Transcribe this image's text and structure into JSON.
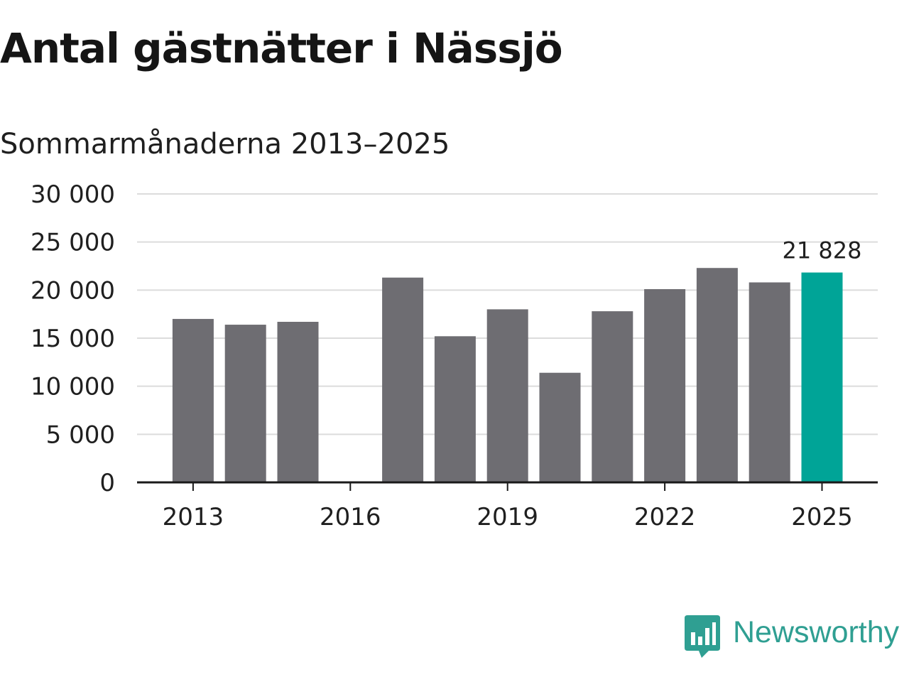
{
  "title": "Antal gästnätter i Nässjö",
  "subtitle": "Sommarmånaderna 2013–2025",
  "colors": {
    "bar": "#6e6d72",
    "highlight": "#00a497",
    "grid": "#dcdcdc",
    "axis": "#1a1a1a",
    "text": "#1f1f1f",
    "brand": "#2f9f92"
  },
  "chart_data": {
    "type": "bar",
    "x": [
      2013,
      2014,
      2015,
      2016,
      2017,
      2018,
      2019,
      2020,
      2021,
      2022,
      2023,
      2024,
      2025
    ],
    "values": [
      17000,
      16400,
      16700,
      null,
      21300,
      15200,
      18000,
      11400,
      17800,
      20100,
      22300,
      20800,
      21828
    ],
    "highlight_index": 12,
    "highlight_label": "21 828",
    "ylim": [
      0,
      30000
    ],
    "yticks": [
      0,
      5000,
      10000,
      15000,
      20000,
      25000,
      30000
    ],
    "ytick_labels": [
      "0",
      "5 000",
      "10 000",
      "15 000",
      "20 000",
      "25 000",
      "30 000"
    ],
    "xticks": [
      2013,
      2016,
      2019,
      2022,
      2025
    ],
    "xtick_labels": [
      "2013",
      "2016",
      "2019",
      "2022",
      "2025"
    ],
    "grid": true,
    "legend": false
  },
  "brand": {
    "name": "Newsworthy",
    "icon": "newsworthy-logo-icon"
  }
}
